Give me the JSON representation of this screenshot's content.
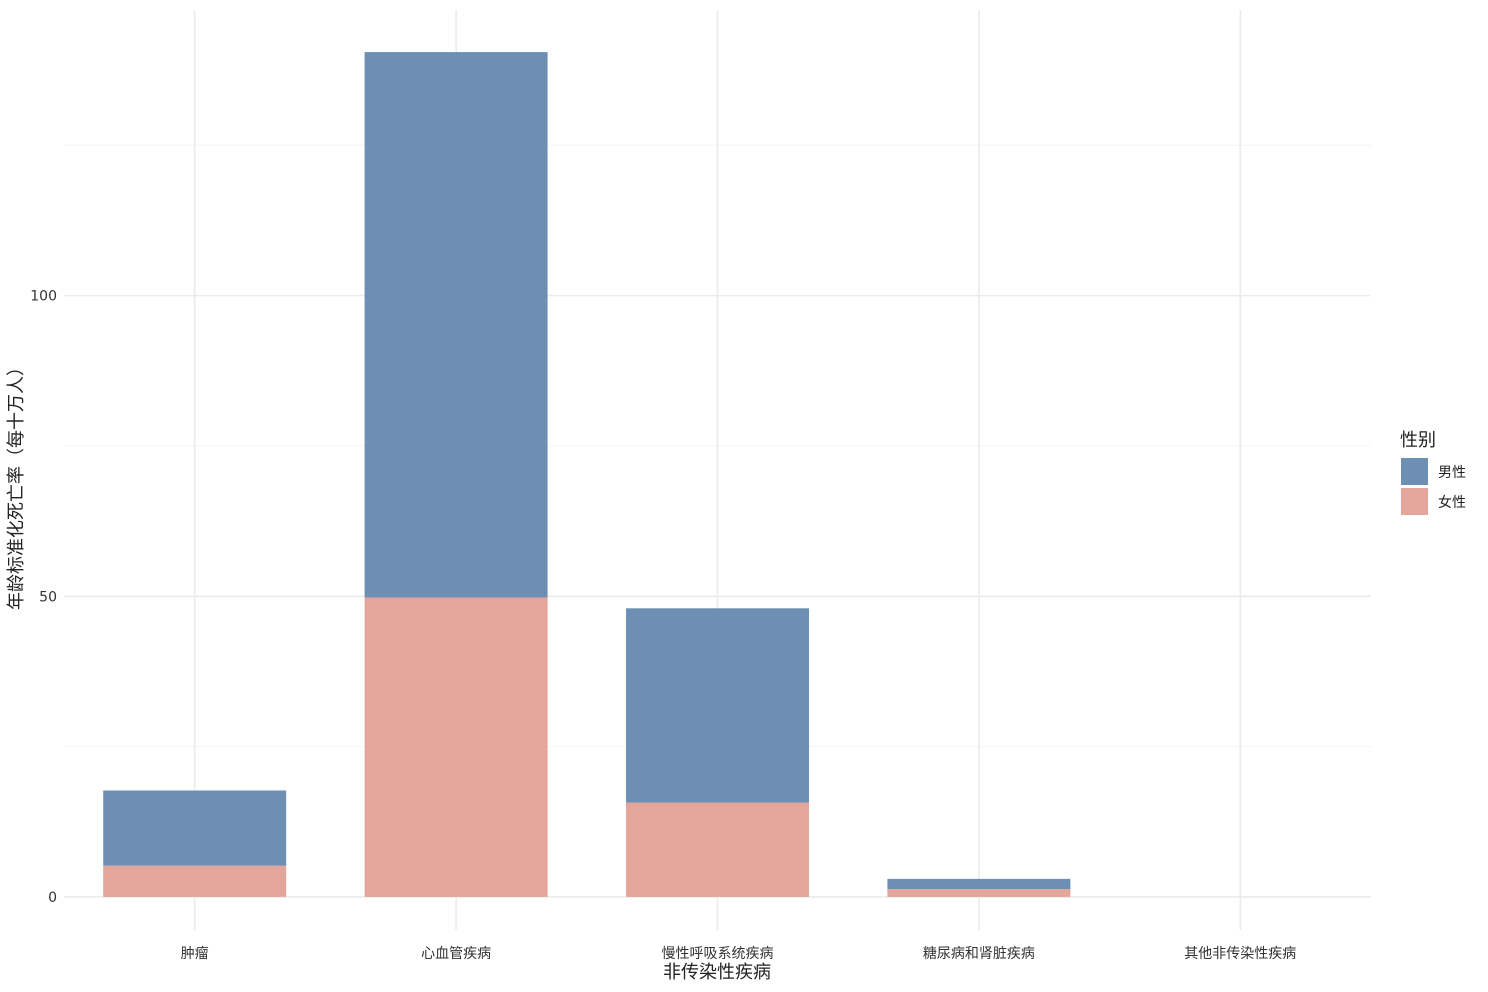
{
  "chart_data": {
    "type": "bar",
    "stacked": true,
    "xlabel": "非传染性疾病",
    "ylabel": "年龄标准化死亡率（每十万人）",
    "categories": [
      "肿瘤",
      "心血管疾病",
      "慢性呼吸系统疾病",
      "糖尿病和肾脏疾病",
      "其他非传染性疾病"
    ],
    "series": [
      {
        "name": "女性",
        "values": [
          5.2,
          49.8,
          15.7,
          1.3,
          0
        ],
        "color": "#e4a69a"
      },
      {
        "name": "男性",
        "values": [
          12.5,
          90.7,
          32.3,
          1.7,
          0
        ],
        "color": "#6d8fb3"
      }
    ],
    "yticks": [
      0,
      50,
      100
    ],
    "ylim": [
      -5.5,
      147.5
    ],
    "grid": true,
    "legend": {
      "title": "性别",
      "position": "right",
      "entries": [
        {
          "label": "男性",
          "color": "#6d8fb3"
        },
        {
          "label": "女性",
          "color": "#e4a69a"
        }
      ]
    }
  }
}
